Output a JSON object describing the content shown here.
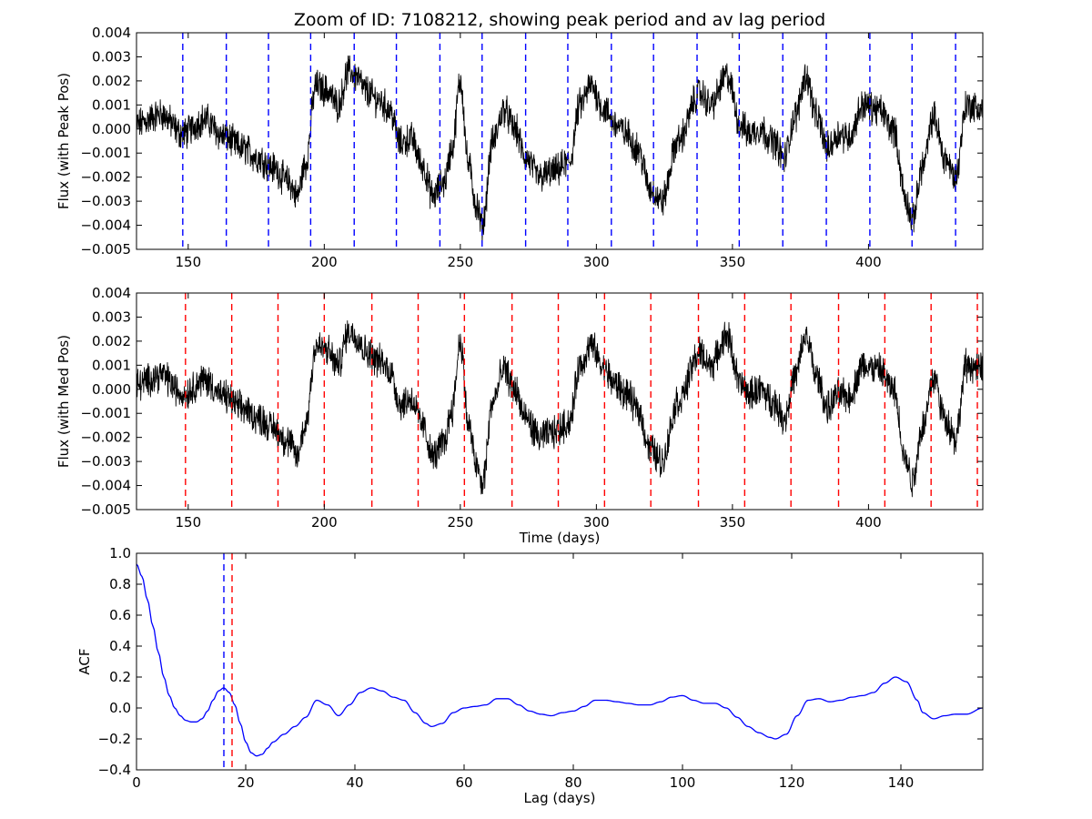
{
  "chart_data": {
    "title": "Zoom of ID: 7108212, showing peak period and av lag period",
    "panels": [
      {
        "type": "line",
        "ylabel": "Flux (with Peak Pos)",
        "xlabel": "",
        "xlim": [
          131,
          442
        ],
        "ylim": [
          -0.005,
          0.004
        ],
        "xticks": [
          150,
          200,
          250,
          300,
          350,
          400
        ],
        "yticks": [
          -0.005,
          -0.004,
          -0.003,
          -0.002,
          -0.001,
          0.0,
          0.001,
          0.002,
          0.003,
          0.004
        ],
        "xtick_labels": [
          "150",
          "200",
          "250",
          "300",
          "350",
          "400"
        ],
        "ytick_labels": [
          "−0.005",
          "−0.004",
          "−0.003",
          "−0.002",
          "−0.001",
          "0.000",
          "0.001",
          "0.002",
          "0.003",
          "0.004"
        ],
        "series": [
          {
            "color": "#000000",
            "x": [
              131,
              140,
              148,
              156,
              163,
              170,
              176,
              181,
              187,
              190,
              193,
              197,
              201,
              205,
              209,
              212,
              215,
              220,
              224,
              228,
              232,
              236,
              240,
              244,
              247,
              250,
              253,
              256,
              258,
              262,
              266,
              270,
              274,
              279,
              284,
              290,
              294,
              298,
              303,
              307,
              311,
              315,
              320,
              324,
              330,
              338,
              342,
              348,
              353,
              356,
              360,
              365,
              369,
              373,
              377,
              381,
              385,
              389,
              393,
              398,
              404,
              409,
              414,
              416,
              420,
              424,
              428,
              432,
              436,
              442
            ],
            "y": [
              0.0002,
              0.0006,
              -0.0002,
              0.0004,
              -0.0003,
              -0.0008,
              -0.0012,
              -0.0016,
              -0.0022,
              -0.0028,
              -0.0015,
              0.0018,
              0.0016,
              0.001,
              0.0024,
              0.0022,
              0.0016,
              0.0012,
              0.0008,
              -0.0006,
              -0.0004,
              -0.0015,
              -0.0028,
              -0.0022,
              -0.0008,
              0.002,
              -0.0015,
              -0.0032,
              -0.004,
              -0.0005,
              0.0008,
              0.0,
              -0.0012,
              -0.002,
              -0.0018,
              -0.0014,
              0.001,
              0.0018,
              0.0008,
              0.0002,
              -0.0002,
              -0.0008,
              -0.0025,
              -0.003,
              -0.0005,
              0.0015,
              0.001,
              0.0022,
              0.0002,
              -0.0002,
              0.0,
              -0.0005,
              -0.0012,
              0.0005,
              0.0022,
              0.0005,
              -0.0008,
              -0.0002,
              -0.0003,
              0.001,
              0.0008,
              0.0,
              -0.003,
              -0.0038,
              -0.0015,
              0.0005,
              -0.0012,
              -0.002,
              0.001,
              0.0008
            ]
          }
        ],
        "vlines": {
          "color": "#0000ff",
          "x": [
            148,
            164,
            179.5,
            195,
            211,
            226.5,
            242.5,
            258,
            274,
            289.5,
            305.5,
            321,
            337,
            352.5,
            368.5,
            384.5,
            400.5,
            416,
            432
          ]
        }
      },
      {
        "type": "line",
        "ylabel": "Flux (with Med Pos)",
        "xlabel": "Time (days)",
        "xlim": [
          131,
          442
        ],
        "ylim": [
          -0.005,
          0.004
        ],
        "xticks": [
          150,
          200,
          250,
          300,
          350,
          400
        ],
        "yticks": [
          -0.005,
          -0.004,
          -0.003,
          -0.002,
          -0.001,
          0.0,
          0.001,
          0.002,
          0.003,
          0.004
        ],
        "xtick_labels": [
          "150",
          "200",
          "250",
          "300",
          "350",
          "400"
        ],
        "ytick_labels": [
          "−0.005",
          "−0.004",
          "−0.003",
          "−0.002",
          "−0.001",
          "0.000",
          "0.001",
          "0.002",
          "0.003",
          "0.004"
        ],
        "series": [
          {
            "color": "#000000",
            "x": [
              131,
              140,
              148,
              156,
              163,
              170,
              176,
              181,
              187,
              190,
              193,
              197,
              201,
              205,
              209,
              212,
              215,
              220,
              224,
              228,
              232,
              236,
              240,
              244,
              247,
              250,
              253,
              256,
              258,
              262,
              266,
              270,
              274,
              279,
              284,
              290,
              294,
              298,
              303,
              307,
              311,
              315,
              320,
              324,
              330,
              338,
              342,
              348,
              353,
              356,
              360,
              365,
              369,
              373,
              377,
              381,
              385,
              389,
              393,
              398,
              404,
              409,
              414,
              416,
              420,
              424,
              428,
              432,
              436,
              442
            ],
            "y": [
              0.0002,
              0.0006,
              -0.0002,
              0.0004,
              -0.0003,
              -0.0008,
              -0.0012,
              -0.0016,
              -0.0022,
              -0.0028,
              -0.0015,
              0.0018,
              0.0016,
              0.001,
              0.0024,
              0.0022,
              0.0016,
              0.0012,
              0.0008,
              -0.0006,
              -0.0004,
              -0.0015,
              -0.0028,
              -0.0022,
              -0.0008,
              0.002,
              -0.0015,
              -0.0032,
              -0.004,
              -0.0005,
              0.0008,
              0.0,
              -0.0012,
              -0.002,
              -0.0018,
              -0.0014,
              0.001,
              0.0018,
              0.0008,
              0.0002,
              -0.0002,
              -0.0008,
              -0.0025,
              -0.003,
              -0.0005,
              0.0015,
              0.001,
              0.0022,
              0.0002,
              -0.0002,
              0.0,
              -0.0005,
              -0.0012,
              0.0005,
              0.0022,
              0.0005,
              -0.0008,
              -0.0002,
              -0.0003,
              0.001,
              0.0008,
              0.0,
              -0.003,
              -0.0038,
              -0.0015,
              0.0005,
              -0.0012,
              -0.002,
              0.001,
              0.0008
            ]
          }
        ],
        "vlines": {
          "color": "#ff0000",
          "x": [
            149,
            166,
            183,
            200,
            217.5,
            234.5,
            251.5,
            269,
            286,
            303,
            320,
            337.5,
            354.5,
            371.5,
            389,
            406,
            423,
            440
          ]
        }
      },
      {
        "type": "line",
        "ylabel": "ACF",
        "xlabel": "Lag (days)",
        "xlim": [
          0,
          155
        ],
        "ylim": [
          -0.4,
          1.0
        ],
        "xticks": [
          0,
          20,
          40,
          60,
          80,
          100,
          120,
          140
        ],
        "yticks": [
          -0.4,
          -0.2,
          0.0,
          0.2,
          0.4,
          0.6,
          0.8,
          1.0
        ],
        "xtick_labels": [
          "0",
          "20",
          "40",
          "60",
          "80",
          "100",
          "120",
          "140"
        ],
        "ytick_labels": [
          "−0.4",
          "−0.2",
          "0.0",
          "0.2",
          "0.4",
          "0.6",
          "0.8",
          "1.0"
        ],
        "series": [
          {
            "color": "#0000ff",
            "x": [
              0,
              1,
              2,
              3,
              4,
              5,
              6,
              7,
              8,
              9,
              10,
              11,
              12,
              13,
              14,
              15,
              16,
              17,
              18,
              19,
              20,
              21,
              22,
              23,
              24,
              25,
              27,
              29,
              31,
              33,
              35,
              37,
              39,
              41,
              43,
              45,
              47,
              49,
              51,
              53,
              54,
              56,
              58,
              60,
              62,
              64,
              66,
              68,
              70,
              72,
              74,
              76,
              78,
              80,
              82,
              84,
              86,
              88,
              90,
              92,
              94,
              96,
              98,
              100,
              102,
              104,
              106,
              108,
              110,
              112,
              114,
              116,
              117,
              119,
              121,
              123,
              125,
              127,
              129,
              131,
              133,
              135,
              137,
              139,
              141,
              143,
              144,
              146,
              148,
              150,
              152,
              155
            ],
            "y": [
              0.93,
              0.85,
              0.7,
              0.53,
              0.36,
              0.2,
              0.08,
              0.0,
              -0.05,
              -0.08,
              -0.09,
              -0.09,
              -0.07,
              -0.02,
              0.05,
              0.11,
              0.13,
              0.1,
              0.02,
              -0.1,
              -0.22,
              -0.29,
              -0.31,
              -0.3,
              -0.26,
              -0.22,
              -0.17,
              -0.12,
              -0.06,
              0.05,
              0.02,
              -0.05,
              0.02,
              0.1,
              0.13,
              0.11,
              0.07,
              0.05,
              -0.03,
              -0.1,
              -0.12,
              -0.1,
              -0.03,
              0.0,
              0.01,
              0.02,
              0.06,
              0.06,
              0.02,
              -0.02,
              -0.04,
              -0.05,
              -0.03,
              -0.02,
              0.01,
              0.05,
              0.05,
              0.04,
              0.03,
              0.02,
              0.02,
              0.04,
              0.07,
              0.08,
              0.05,
              0.03,
              0.03,
              0.0,
              -0.06,
              -0.12,
              -0.16,
              -0.19,
              -0.2,
              -0.17,
              -0.05,
              0.05,
              0.06,
              0.04,
              0.05,
              0.07,
              0.08,
              0.1,
              0.16,
              0.2,
              0.17,
              0.05,
              -0.03,
              -0.07,
              -0.05,
              -0.04,
              -0.04,
              0.0
            ]
          }
        ],
        "vlines": [
          {
            "color": "#0000ff",
            "x": [
              16
            ]
          },
          {
            "color": "#ff0000",
            "x": [
              17.5
            ]
          }
        ]
      }
    ]
  }
}
